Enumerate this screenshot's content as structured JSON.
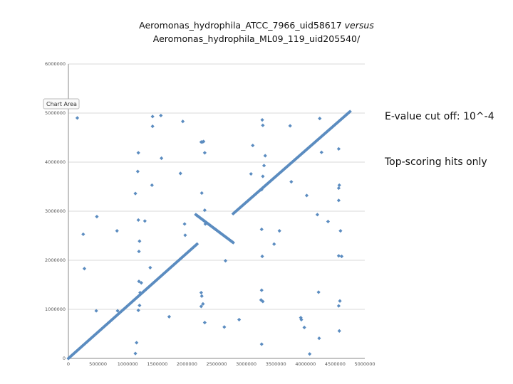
{
  "title": {
    "line1_main": "Aeromonas_hydrophila_ATCC_7966_uid58617",
    "line1_italic": "versus",
    "line2": "Aeromonas_hydrophila_ML09_119_uid205540/"
  },
  "notes": {
    "evalue": "E-value cut off: 10^-4",
    "hits": "Top-scoring hits only"
  },
  "tooltip": {
    "label": "Chart Area"
  },
  "colors": {
    "points": "#5b8cc0",
    "grid": "#d9d9d9",
    "axis": "#888888"
  },
  "chart_data": {
    "type": "scatter",
    "title": "",
    "xlabel": "",
    "ylabel": "",
    "xlim": [
      0,
      5000000
    ],
    "ylim": [
      0,
      6000000
    ],
    "grid": true,
    "x_ticks": [
      0,
      500000,
      1000000,
      1500000,
      2000000,
      2500000,
      3000000,
      3500000,
      4000000,
      4500000,
      5000000
    ],
    "y_ticks": [
      0,
      1000000,
      2000000,
      3000000,
      4000000,
      5000000,
      6000000
    ],
    "x_tick_labels": [
      "0",
      "500000",
      "1000000",
      "1500000",
      "2000000",
      "2500000",
      "3000000",
      "3500000",
      "4000000",
      "4500000",
      "5000000"
    ],
    "y_tick_labels": [
      "0",
      "1000000",
      "2000000",
      "3000000",
      "4000000",
      "5000000",
      "6000000"
    ],
    "diagonal_segments": [
      {
        "x": [
          0,
          2170000
        ],
        "y": [
          0,
          2330000
        ],
        "count": 140
      },
      {
        "x": [
          2150000,
          2780000
        ],
        "y": [
          2930000,
          2360000
        ],
        "count": 45
      },
      {
        "x": [
          2780000,
          4750000
        ],
        "y": [
          2950000,
          5030000
        ],
        "count": 135
      }
    ],
    "scattered_points": [
      [
        150000,
        4900000
      ],
      [
        250000,
        2530000
      ],
      [
        270000,
        1830000
      ],
      [
        480000,
        2890000
      ],
      [
        470000,
        970000
      ],
      [
        820000,
        2600000
      ],
      [
        830000,
        970000
      ],
      [
        1130000,
        3360000
      ],
      [
        1180000,
        4190000
      ],
      [
        1170000,
        3810000
      ],
      [
        1180000,
        2820000
      ],
      [
        1200000,
        2390000
      ],
      [
        1190000,
        2180000
      ],
      [
        1190000,
        1570000
      ],
      [
        1230000,
        1540000
      ],
      [
        1210000,
        1340000
      ],
      [
        1200000,
        1080000
      ],
      [
        1180000,
        980000
      ],
      [
        1150000,
        320000
      ],
      [
        1130000,
        100000
      ],
      [
        1290000,
        2800000
      ],
      [
        1410000,
        3530000
      ],
      [
        1420000,
        4730000
      ],
      [
        1420000,
        4930000
      ],
      [
        1560000,
        4950000
      ],
      [
        1570000,
        4080000
      ],
      [
        1380000,
        1850000
      ],
      [
        1700000,
        850000
      ],
      [
        1890000,
        3770000
      ],
      [
        1930000,
        4830000
      ],
      [
        1960000,
        2740000
      ],
      [
        1970000,
        2510000
      ],
      [
        2240000,
        4410000
      ],
      [
        2260000,
        4410000
      ],
      [
        2280000,
        4420000
      ],
      [
        2300000,
        4190000
      ],
      [
        2250000,
        3370000
      ],
      [
        2300000,
        3020000
      ],
      [
        2310000,
        2740000
      ],
      [
        2240000,
        1340000
      ],
      [
        2250000,
        1270000
      ],
      [
        2270000,
        1110000
      ],
      [
        2240000,
        1060000
      ],
      [
        2300000,
        730000
      ],
      [
        2650000,
        1990000
      ],
      [
        2630000,
        640000
      ],
      [
        2880000,
        790000
      ],
      [
        3110000,
        4340000
      ],
      [
        3080000,
        3760000
      ],
      [
        3270000,
        4860000
      ],
      [
        3280000,
        4750000
      ],
      [
        3320000,
        4130000
      ],
      [
        3300000,
        3930000
      ],
      [
        3280000,
        3710000
      ],
      [
        3260000,
        3440000
      ],
      [
        3260000,
        2630000
      ],
      [
        3270000,
        2080000
      ],
      [
        3260000,
        1390000
      ],
      [
        3250000,
        1190000
      ],
      [
        3280000,
        1160000
      ],
      [
        3260000,
        290000
      ],
      [
        3470000,
        2330000
      ],
      [
        3560000,
        2600000
      ],
      [
        3740000,
        4740000
      ],
      [
        3760000,
        3600000
      ],
      [
        3920000,
        830000
      ],
      [
        3930000,
        790000
      ],
      [
        3980000,
        630000
      ],
      [
        4020000,
        3320000
      ],
      [
        4070000,
        90000
      ],
      [
        4240000,
        4890000
      ],
      [
        4270000,
        4200000
      ],
      [
        4200000,
        2930000
      ],
      [
        4220000,
        1350000
      ],
      [
        4230000,
        410000
      ],
      [
        4380000,
        2790000
      ],
      [
        4560000,
        4270000
      ],
      [
        4570000,
        3530000
      ],
      [
        4560000,
        3470000
      ],
      [
        4560000,
        3220000
      ],
      [
        4590000,
        2600000
      ],
      [
        4560000,
        2090000
      ],
      [
        4610000,
        2080000
      ],
      [
        4580000,
        1170000
      ],
      [
        4560000,
        1070000
      ],
      [
        4570000,
        560000
      ]
    ]
  }
}
